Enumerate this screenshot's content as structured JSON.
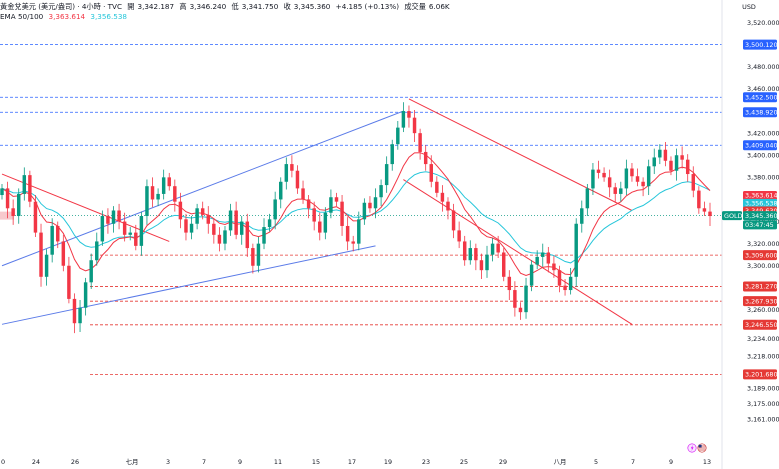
{
  "header": {
    "symbol": "黃金兌美元 (美元/盎司) · 4小時 · TVC",
    "open_label": "開",
    "open": "3,342.187",
    "high_label": "高",
    "high": "3,346.240",
    "low_label": "低",
    "low": "3,341.750",
    "close_label": "收",
    "close": "3,345.360",
    "change": "+4.185 (+0.13%)",
    "volume_label": "成交量",
    "volume": "6.06K",
    "ema_label": "EMA 50/100",
    "ema50": "3,363.614",
    "ema100": "3,356.538"
  },
  "colors": {
    "up": "#089981",
    "down": "#f23645",
    "ema50": "#f23645",
    "ema100": "#26c6da",
    "channel_up": "#5b7be8",
    "channel_down": "#f23645",
    "level_blue": "#2962ff",
    "level_red": "#e53935"
  },
  "chart_data": {
    "type": "candlestick",
    "currency": "USD",
    "y_axis_labels": [
      "3,520.000",
      "3,480.000",
      "3,460.000",
      "3,420.000",
      "3,400.000",
      "3,380.000",
      "3,340.000",
      "3,320.000",
      "3,300.000",
      "3,260.000",
      "3,234.000",
      "3,218.000",
      "3,189.000",
      "3,175.000",
      "3,161.000"
    ],
    "ylim": [
      3155,
      3530
    ],
    "x_tick_labels": [
      "0",
      "24",
      "26",
      "七月",
      "3",
      "7",
      "9",
      "11",
      "15",
      "17",
      "19",
      "23",
      "25",
      "29",
      "八月",
      "5",
      "7",
      "9",
      "13"
    ],
    "horizontal_levels": [
      {
        "price": 3500.12,
        "label": "3,500.120",
        "color": "blue"
      },
      {
        "price": 3452.5,
        "label": "3,452.500",
        "color": "blue"
      },
      {
        "price": 3438.92,
        "label": "3,438.920",
        "color": "blue"
      },
      {
        "price": 3409.04,
        "label": "3,409.040",
        "color": "blue"
      },
      {
        "price": 3309.6,
        "label": "3,309.600",
        "color": "red"
      },
      {
        "price": 3281.27,
        "label": "3,281.270",
        "color": "red"
      },
      {
        "price": 3267.93,
        "label": "3,267.930",
        "color": "red"
      },
      {
        "price": 3246.55,
        "label": "3,246.550",
        "color": "red"
      },
      {
        "price": 3201.68,
        "label": "3,201.680",
        "color": "red"
      }
    ],
    "price_tags": [
      {
        "label": "3,363.614",
        "kind": "ema50"
      },
      {
        "label": "3,356.538",
        "kind": "ema100"
      },
      {
        "label": "3,349.630",
        "kind": "red"
      },
      {
        "label": "3,345.360",
        "kind": "last"
      },
      {
        "label": "03:47:45",
        "kind": "countdown"
      }
    ],
    "last_price": 3345.36,
    "symbol_tag": "GOLD",
    "closes": [
      3370,
      3352,
      3345,
      3365,
      3382,
      3358,
      3330,
      3290,
      3310,
      3336,
      3322,
      3300,
      3270,
      3248,
      3262,
      3285,
      3305,
      3322,
      3345,
      3338,
      3350,
      3340,
      3328,
      3330,
      3318,
      3345,
      3372,
      3360,
      3365,
      3380,
      3372,
      3358,
      3342,
      3330,
      3338,
      3352,
      3346,
      3338,
      3328,
      3320,
      3332,
      3350,
      3328,
      3340,
      3316,
      3300,
      3320,
      3335,
      3342,
      3360,
      3376,
      3392,
      3386,
      3370,
      3360,
      3352,
      3340,
      3330,
      3348,
      3362,
      3358,
      3336,
      3322,
      3320,
      3342,
      3357,
      3352,
      3362,
      3373,
      3392,
      3410,
      3425,
      3440,
      3434,
      3420,
      3403,
      3392,
      3376,
      3366,
      3358,
      3350,
      3332,
      3322,
      3305,
      3316,
      3305,
      3296,
      3310,
      3320,
      3312,
      3290,
      3278,
      3262,
      3258,
      3282,
      3301,
      3308,
      3312,
      3302,
      3296,
      3282,
      3278,
      3290,
      3338,
      3352,
      3370,
      3387,
      3384,
      3380,
      3371,
      3365,
      3370,
      3388,
      3381,
      3376,
      3372,
      3390,
      3398,
      3405,
      3395,
      3386,
      3400,
      3396,
      3383,
      3368,
      3352,
      3349,
      3345
    ],
    "channel_up": {
      "lower": [
        [
          0,
          3247
        ],
        [
          67,
          3318
        ]
      ],
      "upper": [
        [
          0,
          3300
        ],
        [
          72,
          3440
        ]
      ]
    },
    "channel_down": {
      "upper": [
        [
          73,
          3451
        ],
        [
          113,
          3350
        ]
      ],
      "lower": [
        [
          72,
          3378
        ],
        [
          113,
          3247
        ]
      ]
    },
    "downtrend_line": [
      [
        0,
        3383
      ],
      [
        30,
        3322
      ]
    ],
    "watermark_icons": [
      "lightning-icon",
      "us-flag-icon"
    ]
  }
}
